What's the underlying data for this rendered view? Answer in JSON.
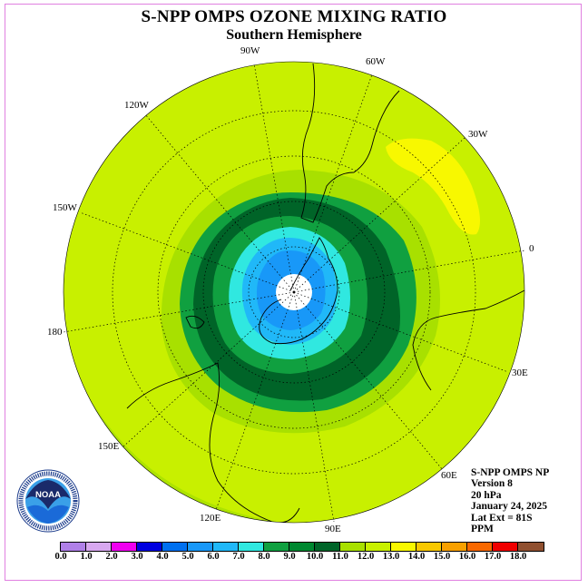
{
  "title": "S-NPP OMPS OZONE MIXING RATIO",
  "subtitle": "Southern Hemisphere",
  "longitude_labels": [
    "90W",
    "60W",
    "30W",
    "0",
    "30E",
    "60E",
    "90E",
    "120E",
    "150E",
    "180",
    "150W",
    "120W"
  ],
  "info": {
    "instrument": "S-NPP OMPS NP",
    "version": "Version 8",
    "level": "20 hPa",
    "date": "January 24, 2025",
    "lat_ext": "Lat Ext = 81S",
    "units": "PPM"
  },
  "logo_text": "NOAA",
  "colorbar": {
    "ticks": [
      "0.0",
      "1.0",
      "2.0",
      "3.0",
      "4.0",
      "5.0",
      "6.0",
      "7.0",
      "8.0",
      "9.0",
      "10.0",
      "11.0",
      "12.0",
      "13.0",
      "14.0",
      "15.0",
      "16.0",
      "17.0",
      "18.0"
    ],
    "colors": [
      "#b080e8",
      "#d8a8f0",
      "#f000f0",
      "#0000e0",
      "#0070f0",
      "#1898f8",
      "#20b8f8",
      "#30e8e0",
      "#10a040",
      "#008830",
      "#006428",
      "#a8e000",
      "#c8f000",
      "#f8f800",
      "#f8c800",
      "#f8a000",
      "#f86800",
      "#f00000",
      "#905030"
    ]
  },
  "chart_data": {
    "type": "heatmap",
    "title": "S-NPP OMPS OZONE MIXING RATIO",
    "subtitle": "Southern Hemisphere",
    "projection": "polar stereographic, south pole centered",
    "units": "PPM",
    "pressure_level": "20 hPa",
    "date": "January 24, 2025",
    "lat_ext": "81S",
    "scale_range": [
      0.0,
      18.0
    ],
    "scale_step": 1.0,
    "regions": [
      {
        "region": "south pole (no data)",
        "value_range": null
      },
      {
        "region": "inner polar vortex",
        "value_range": [
          5.0,
          7.0
        ]
      },
      {
        "region": "vortex edge",
        "value_range": [
          7.0,
          8.0
        ]
      },
      {
        "region": "polar collar",
        "value_range": [
          8.0,
          10.0
        ]
      },
      {
        "region": "mid latitudes",
        "value_range": [
          10.0,
          12.0
        ]
      },
      {
        "region": "South Atlantic maximum",
        "value_range": [
          12.0,
          13.0
        ]
      }
    ]
  }
}
